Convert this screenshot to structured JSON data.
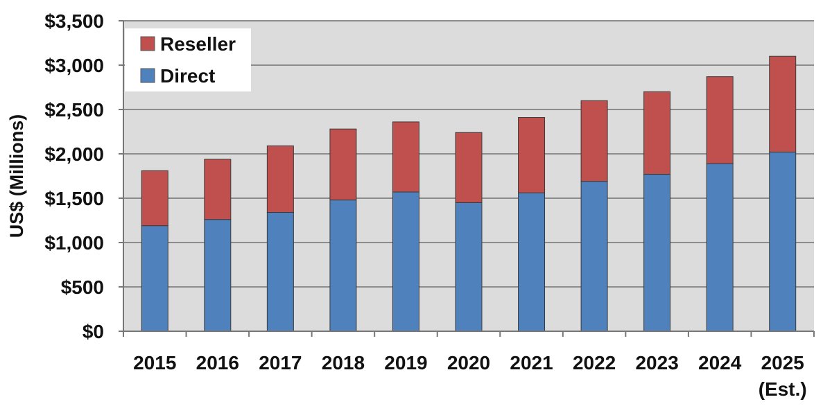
{
  "chart_data": {
    "type": "bar",
    "stacked": true,
    "categories": [
      "2015",
      "2016",
      "2017",
      "2018",
      "2019",
      "2020",
      "2021",
      "2022",
      "2023",
      "2024",
      "2025"
    ],
    "category_sublabels": [
      "",
      "",
      "",
      "",
      "",
      "",
      "",
      "",
      "",
      "",
      "(Est.)"
    ],
    "series": [
      {
        "name": "Direct",
        "color": "#4f81bd",
        "values": [
          1190,
          1260,
          1340,
          1480,
          1570,
          1450,
          1560,
          1690,
          1770,
          1890,
          2020
        ]
      },
      {
        "name": "Reseller",
        "color": "#c0504d",
        "values": [
          620,
          680,
          750,
          800,
          790,
          790,
          850,
          910,
          930,
          980,
          1080
        ]
      }
    ],
    "legend_order": [
      "Reseller",
      "Direct"
    ],
    "legend_position": "top-left",
    "ylabel": "US$ (Millions)",
    "xlabel": "",
    "ylim": [
      0,
      3500
    ],
    "yticks": [
      {
        "value": 0,
        "label": "$0"
      },
      {
        "value": 500,
        "label": "$500"
      },
      {
        "value": 1000,
        "label": "$1,000"
      },
      {
        "value": 1500,
        "label": "$1,500"
      },
      {
        "value": 2000,
        "label": "$2,000"
      },
      {
        "value": 2500,
        "label": "$2,500"
      },
      {
        "value": 3000,
        "label": "$3,000"
      },
      {
        "value": 3500,
        "label": "$3,500"
      }
    ],
    "grid": true,
    "plot_background": "#dcdcdc",
    "gridline_color": "#8c8c8c"
  }
}
